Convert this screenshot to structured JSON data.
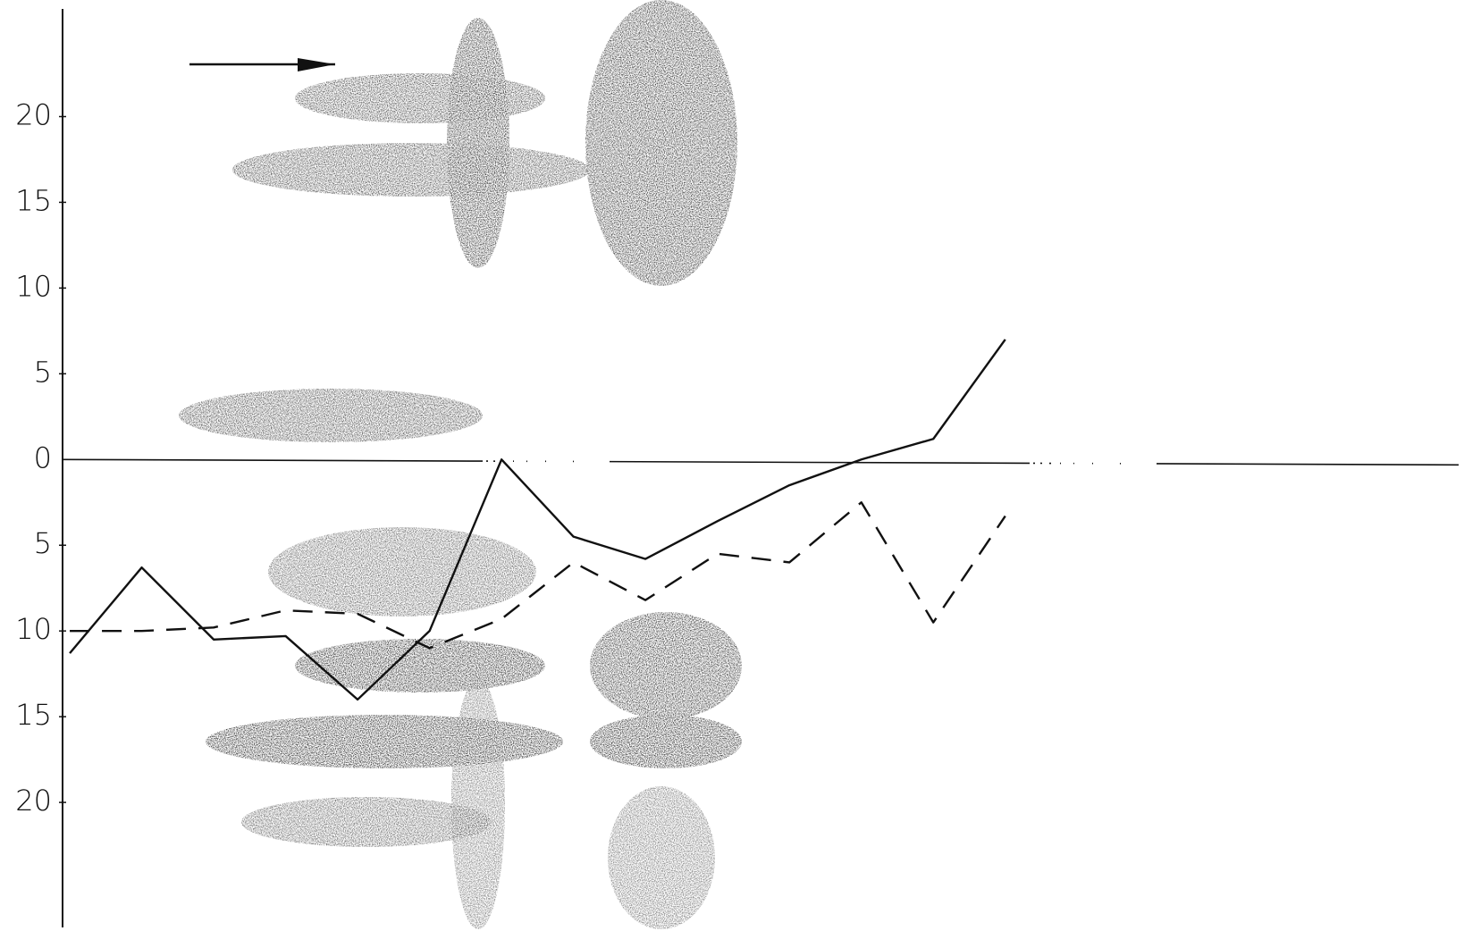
{
  "chart_data": {
    "type": "line",
    "x": [
      0,
      1,
      2,
      3,
      4,
      5,
      6,
      7,
      8,
      9,
      10,
      11,
      12,
      13
    ],
    "xlim": [
      -0.1,
      19.3
    ],
    "ylim": [
      -27.5,
      26.8
    ],
    "yticks": [
      20,
      15,
      10,
      5,
      0,
      {
        "value": -5,
        "label": "5"
      },
      {
        "value": -10,
        "label": "10"
      },
      {
        "value": -15,
        "label": "15"
      },
      {
        "value": -20,
        "label": "20"
      }
    ],
    "series": [
      {
        "style": "solid",
        "color": "#111111",
        "values": [
          -11.3,
          -6.3,
          -10.5,
          -10.3,
          -14,
          -10,
          0,
          -4.5,
          -5.8,
          -3.6,
          -1.5,
          0,
          1.2,
          7
        ]
      },
      {
        "style": "dashed",
        "color": "#111111",
        "values": [
          -10,
          -10,
          -9.8,
          -8.8,
          -9,
          -11,
          -9.3,
          -6,
          -8.2,
          -5.5,
          -6,
          -2.5,
          -9.5,
          -3.3
        ]
      }
    ]
  }
}
